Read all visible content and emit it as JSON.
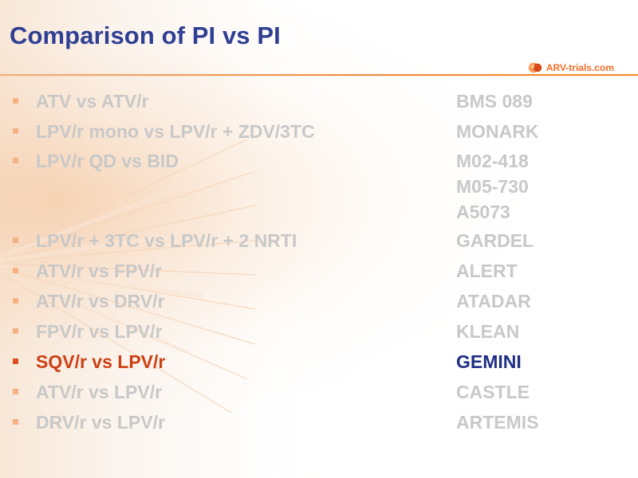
{
  "header": {
    "title": "Comparison of PI vs PI"
  },
  "brand": {
    "name": "ARV-trials.com"
  },
  "comparisons": [
    {
      "label": "ATV vs ATV/r",
      "studies": [
        "BMS 089"
      ]
    },
    {
      "label": "LPV/r mono vs LPV/r + ZDV/3TC",
      "studies": [
        "MONARK"
      ]
    },
    {
      "label": "LPV/r QD vs BID",
      "studies": [
        "M02-418",
        "M05-730",
        "A5073"
      ]
    },
    {
      "label": "LPV/r + 3TC vs LPV/r + 2 NRTI",
      "studies": [
        "GARDEL"
      ]
    },
    {
      "label": "ATV/r vs FPV/r",
      "studies": [
        "ALERT"
      ]
    },
    {
      "label": "ATV/r vs DRV/r",
      "studies": [
        "ATADAR"
      ]
    },
    {
      "label": "FPV/r vs LPV/r",
      "studies": [
        "KLEAN"
      ]
    },
    {
      "label": "SQV/r vs LPV/r",
      "studies": [
        "GEMINI"
      ],
      "highlight": true
    },
    {
      "label": "ATV/r vs LPV/r",
      "studies": [
        "CASTLE"
      ]
    },
    {
      "label": "DRV/r vs LPV/r",
      "studies": [
        "ARTEMIS"
      ]
    }
  ],
  "colors": {
    "title": "#2f3f93",
    "muted_text": "#c8c8c8",
    "highlight_label": "#cc4014",
    "highlight_study": "#1f2f84",
    "bullet": "#f5b184",
    "highlight_bullet": "#df4d1d",
    "rule": "#ef8f44",
    "brand": "#f06d24"
  },
  "icons": {
    "bullet": "square-bullet-icon",
    "brand": "arv-trials-logo-icon"
  }
}
